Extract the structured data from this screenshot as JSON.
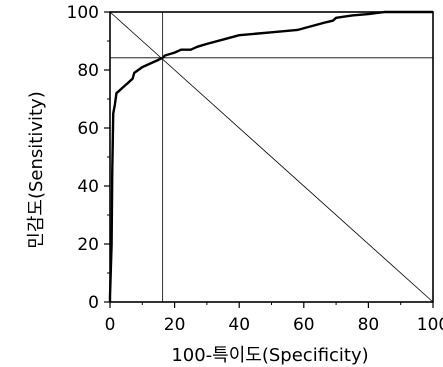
{
  "chart_data": {
    "type": "line",
    "xlabel": "100-특이도(Specificity)",
    "ylabel": "민감도(Sensitivity)",
    "xlim": [
      0,
      100
    ],
    "ylim": [
      0,
      100
    ],
    "xticks": [
      0,
      20,
      40,
      60,
      80,
      100
    ],
    "yticks": [
      0,
      20,
      40,
      60,
      80,
      100
    ],
    "grid": false,
    "reference_line": {
      "from": [
        0,
        100
      ],
      "to": [
        100,
        0
      ]
    },
    "cutoff_lines": {
      "x": 16.3,
      "y": 84.2
    },
    "series": [
      {
        "x": [
          0,
          0,
          0.5,
          0.7,
          1,
          1.5,
          2,
          3,
          5,
          7,
          7.5,
          10,
          13,
          15,
          16.3,
          17,
          20,
          22,
          25,
          27,
          30,
          35,
          40,
          45,
          50,
          58,
          62,
          67,
          69,
          70,
          75,
          80,
          85,
          90,
          95,
          100
        ],
        "y": [
          0,
          2,
          20,
          45,
          65,
          68,
          72,
          73,
          75,
          77,
          79,
          81,
          82.5,
          83.5,
          84.2,
          85,
          86,
          87,
          87,
          88,
          89,
          90.5,
          92,
          92.5,
          93,
          93.8,
          95,
          96.5,
          97,
          98,
          98.8,
          99.3,
          100,
          100,
          100,
          100
        ]
      }
    ]
  }
}
